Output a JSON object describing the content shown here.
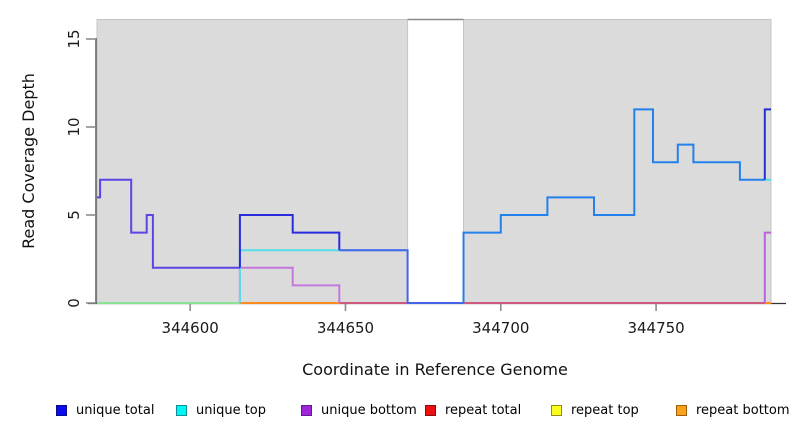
{
  "chart_data": {
    "type": "line",
    "subtype": "step-coverage-plot",
    "title": "",
    "xlabel": "Coordinate in Reference Genome",
    "ylabel": "Read Coverage Depth",
    "xlim": [
      344570,
      344787
    ],
    "ylim": [
      0,
      16
    ],
    "xticks": [
      344600,
      344650,
      344700,
      344750
    ],
    "yticks": [
      0,
      5,
      10,
      15
    ],
    "grid": false,
    "legend_position": "bottom",
    "shaded_regions": [
      {
        "name": "alignable-left",
        "x0": 344570,
        "x1": 344670,
        "fill": "#dbdbdb",
        "border": "#c4c4c4"
      },
      {
        "name": "alignable-right",
        "x0": 344688,
        "x1": 344787,
        "fill": "#dbdbdb",
        "border": "#c4c4c4"
      }
    ],
    "gap_region": {
      "x0": 344670,
      "x1": 344688,
      "top_line_color": "#8a8a8a"
    },
    "lines": [
      {
        "series": "baseline left",
        "color": "#8ce396",
        "points": [
          [
            344570,
            0
          ],
          [
            344616,
            0
          ]
        ]
      },
      {
        "series": "repeat total",
        "color": "#cc5a7e",
        "points": [
          [
            344648,
            0
          ],
          [
            344787,
            0
          ]
        ]
      },
      {
        "series": "repeat bottom",
        "color": "#fb8c1d",
        "points": [
          [
            344616,
            0
          ],
          [
            344648,
            0
          ]
        ]
      },
      {
        "series": "repeat bottom",
        "color": "#fb8c1d",
        "points": [
          [
            344785,
            0
          ],
          [
            344787,
            0
          ]
        ]
      },
      {
        "series": "unique bottom",
        "color": "#c478de",
        "points": [
          [
            344616,
            0
          ],
          [
            344616,
            2
          ],
          [
            344633,
            2
          ],
          [
            344633,
            1
          ],
          [
            344648,
            1
          ],
          [
            344648,
            0
          ]
        ]
      },
      {
        "series": "unique bottom",
        "color": "#bb63dc",
        "points": [
          [
            344785,
            0
          ],
          [
            344785,
            4
          ],
          [
            344787,
            4
          ]
        ]
      },
      {
        "series": "unique top",
        "color": "#54dee8",
        "points": [
          [
            344616,
            0
          ],
          [
            344616,
            3
          ],
          [
            344670,
            3
          ]
        ]
      },
      {
        "series": "unique top",
        "color": "#54dee8",
        "points": [
          [
            344785,
            7
          ],
          [
            344787,
            7
          ]
        ]
      },
      {
        "series": "unique total",
        "color": "#5a45e6",
        "points": [
          [
            344570,
            6
          ],
          [
            344571,
            6
          ],
          [
            344571,
            7
          ],
          [
            344581,
            7
          ],
          [
            344581,
            4
          ],
          [
            344586,
            4
          ],
          [
            344586,
            5
          ],
          [
            344588,
            5
          ],
          [
            344588,
            2
          ],
          [
            344616,
            2
          ]
        ]
      },
      {
        "series": "unique total",
        "color": "#2a2adf",
        "points": [
          [
            344616,
            2
          ],
          [
            344616,
            5
          ],
          [
            344633,
            5
          ],
          [
            344633,
            4
          ],
          [
            344648,
            4
          ],
          [
            344648,
            3
          ]
        ]
      },
      {
        "series": "unique total",
        "color": "#4663ea",
        "points": [
          [
            344648,
            3
          ],
          [
            344670,
            3
          ],
          [
            344670,
            0
          ],
          [
            344688,
            0
          ]
        ]
      },
      {
        "series": "unique total",
        "color": "#2480ea",
        "points": [
          [
            344688,
            0
          ],
          [
            344688,
            4
          ],
          [
            344700,
            4
          ],
          [
            344700,
            5
          ],
          [
            344715,
            5
          ],
          [
            344715,
            6
          ],
          [
            344730,
            6
          ],
          [
            344730,
            5
          ],
          [
            344743,
            5
          ],
          [
            344743,
            11
          ],
          [
            344749,
            11
          ],
          [
            344749,
            8
          ],
          [
            344757,
            8
          ],
          [
            344757,
            9
          ],
          [
            344762,
            9
          ],
          [
            344762,
            8
          ],
          [
            344777,
            8
          ],
          [
            344777,
            7
          ],
          [
            344785,
            7
          ]
        ]
      },
      {
        "series": "unique total",
        "color": "#2531cf",
        "points": [
          [
            344785,
            7
          ],
          [
            344785,
            11
          ],
          [
            344787,
            11
          ]
        ]
      }
    ]
  },
  "legend": {
    "items": [
      {
        "label": "unique total",
        "fill": "#0d0deb",
        "border": "#0a0a8c"
      },
      {
        "label": "unique top",
        "fill": "#00f5f5",
        "border": "#0a8f97"
      },
      {
        "label": "unique bottom",
        "fill": "#9c26d8",
        "border": "#641a8c"
      },
      {
        "label": "repeat total",
        "fill": "#ea1010",
        "border": "#8c0f0f"
      },
      {
        "label": "repeat top",
        "fill": "#fcfc1f",
        "border": "#8f8f12"
      },
      {
        "label": "repeat bottom",
        "fill": "#fba21d",
        "border": "#9c5f0e"
      }
    ]
  },
  "axis": {
    "tick_color": "#8c8c8c",
    "line_color": "#333333",
    "text_color": "#1a1a1a"
  }
}
